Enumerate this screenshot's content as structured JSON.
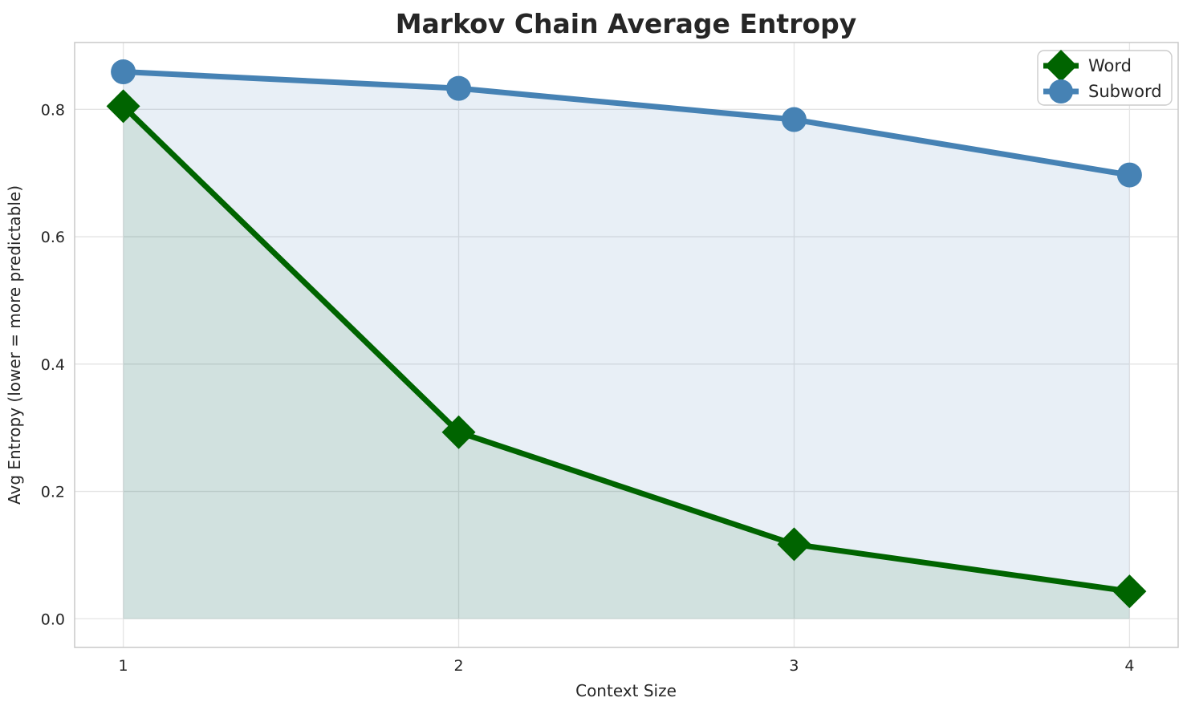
{
  "figure": {
    "title": "Markov Chain Average Entropy"
  },
  "chart_data": {
    "type": "line",
    "title": "Markov Chain Average Entropy",
    "xlabel": "Context Size",
    "ylabel": "Avg Entropy (lower = more predictable)",
    "x": [
      1,
      2,
      3,
      4
    ],
    "series": [
      {
        "name": "Word",
        "values": [
          0.805,
          0.293,
          0.117,
          0.043
        ],
        "color": "#006400",
        "marker": "diamond",
        "fill_to_zero": true,
        "fill_alpha": 0.1
      },
      {
        "name": "Subword",
        "values": [
          0.859,
          0.833,
          0.784,
          0.697
        ],
        "color": "#4682b4",
        "marker": "circle",
        "fill_to_zero": true,
        "fill_alpha": 0.125
      }
    ],
    "xticks": [
      "1",
      "2",
      "3",
      "4"
    ],
    "xtick_values": [
      1,
      2,
      3,
      4
    ],
    "yticks": [
      "0.0",
      "0.2",
      "0.4",
      "0.6",
      "0.8"
    ],
    "ytick_values": [
      0.0,
      0.2,
      0.4,
      0.6,
      0.8
    ],
    "xlim": [
      0.855,
      4.145
    ],
    "ylim": [
      -0.045,
      0.905
    ],
    "grid": true,
    "legend_position": "upper right",
    "legend": [
      "Word",
      "Subword"
    ],
    "style": {
      "background": "#ffffff",
      "grid_color": "#e4e4e4",
      "spine_color": "#c9c9c9",
      "text_color": "#262626",
      "legend_border_color": "#cccccc",
      "legend_background": "#ffffff"
    }
  }
}
